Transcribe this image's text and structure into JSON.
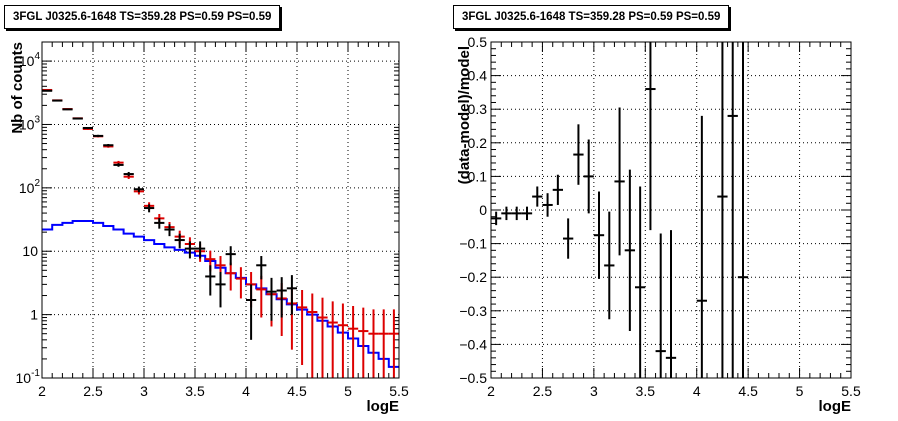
{
  "chart_data": [
    {
      "type": "line",
      "title": "3FGL J0325.6-1648 TS=359.28 PS=0.59 PS=0.59",
      "xlabel": "logE",
      "ylabel": "Nb of counts",
      "xlim": [
        2,
        5.5
      ],
      "ylim": [
        0.1,
        20000
      ],
      "yscale": "log",
      "grid": true,
      "x_ticks": [
        "2",
        "2.5",
        "3",
        "3.5",
        "4",
        "4.5",
        "5",
        "5.5"
      ],
      "y_ticks": [
        {
          "value": 0.1,
          "label": "10",
          "exp": "-1"
        },
        {
          "value": 1,
          "label": "1",
          "exp": ""
        },
        {
          "value": 10,
          "label": "10",
          "exp": ""
        },
        {
          "value": 100,
          "label": "10",
          "exp": "2"
        },
        {
          "value": 1000,
          "label": "10",
          "exp": "3"
        },
        {
          "value": 10000,
          "label": "10",
          "exp": "4"
        }
      ],
      "bin_edges": [
        2.0,
        2.1,
        2.2,
        2.3,
        2.4,
        2.5,
        2.6,
        2.7,
        2.8,
        2.9,
        3.0,
        3.1,
        3.2,
        3.3,
        3.4,
        3.5,
        3.6,
        3.7,
        3.8,
        3.9,
        4.0,
        4.1,
        4.2,
        4.3,
        4.4,
        4.5,
        4.6,
        4.7,
        4.8,
        4.9,
        5.0,
        5.1,
        5.2,
        5.3,
        5.4,
        5.5
      ],
      "series": [
        {
          "name": "",
          "kind": "step",
          "color": "#0000ff",
          "values": [
            22,
            26,
            28,
            30,
            30,
            28,
            25,
            22,
            19,
            17,
            15,
            13,
            11.5,
            10.5,
            9.5,
            8.5,
            7,
            5.5,
            4.5,
            3.8,
            3.0,
            2.6,
            2.1,
            1.75,
            1.45,
            1.2,
            1.0,
            0.8,
            0.65,
            0.52,
            0.42,
            0.32,
            0.25,
            0.2,
            0.15
          ]
        },
        {
          "name": "",
          "kind": "model-errorbars",
          "color": "#dd0000",
          "x": [
            2.05,
            2.15,
            2.25,
            2.35,
            2.45,
            2.55,
            2.65,
            2.75,
            2.85,
            2.95,
            3.05,
            3.15,
            3.25,
            3.35,
            3.45,
            3.55,
            3.65,
            3.75,
            3.85,
            3.95,
            4.05,
            4.15,
            4.25,
            4.35,
            4.45,
            4.55,
            4.65,
            4.75,
            4.85,
            4.95,
            5.05,
            5.15,
            5.25,
            5.35,
            5.45
          ],
          "y": [
            3500,
            2400,
            1750,
            1250,
            850,
            650,
            450,
            250,
            150,
            88,
            52,
            33,
            24,
            17,
            13,
            10,
            7.5,
            6,
            4.5,
            3.7,
            3.0,
            2.5,
            2.1,
            1.8,
            1.5,
            1.3,
            1.1,
            0.9,
            0.75,
            0.68,
            0.6,
            0.55,
            0.5,
            0.5,
            0.5
          ],
          "err": [
            60,
            50,
            42,
            35,
            29,
            25,
            21,
            16,
            12,
            9.4,
            7.2,
            5.7,
            4.9,
            4.1,
            3.6,
            3.2,
            2.7,
            2.4,
            2.1,
            1.9,
            1.7,
            1.6,
            1.45,
            1.34,
            1.22,
            1.14,
            1.05,
            0.95,
            0.87,
            0.82,
            0.77,
            0.74,
            0.71,
            0.71,
            0.71
          ]
        },
        {
          "name": "",
          "kind": "data-errorbars",
          "color": "#000000",
          "x": [
            2.05,
            2.15,
            2.25,
            2.35,
            2.45,
            2.55,
            2.65,
            2.75,
            2.85,
            2.95,
            3.05,
            3.15,
            3.25,
            3.35,
            3.45,
            3.55,
            3.65,
            3.75,
            3.85,
            4.05,
            4.15,
            4.25,
            4.35,
            4.45
          ],
          "y": [
            3400,
            2380,
            1730,
            1240,
            880,
            660,
            470,
            230,
            165,
            95,
            48,
            28,
            22,
            15,
            11,
            11,
            4,
            3,
            9,
            1.7,
            6,
            2.3,
            2.4,
            2.6
          ],
          "err": [
            58,
            49,
            42,
            35,
            30,
            26,
            22,
            15,
            13,
            9.7,
            6.9,
            5.3,
            4.7,
            3.9,
            3.3,
            3.3,
            2,
            1.7,
            3,
            1.3,
            2.4,
            1.5,
            1.5,
            1.6
          ]
        }
      ]
    },
    {
      "type": "scatter",
      "title": "3FGL J0325.6-1648 TS=359.28 PS=0.59 PS=0.59",
      "xlabel": "logE",
      "ylabel": "(data-model)/model",
      "xlim": [
        2,
        5.5
      ],
      "ylim": [
        -0.5,
        0.5
      ],
      "grid": true,
      "x_ticks": [
        "2",
        "2.5",
        "3",
        "3.5",
        "4",
        "4.5",
        "5",
        "5.5"
      ],
      "y_ticks": [
        "-0.5",
        "-0.4",
        "-0.3",
        "-0.2",
        "-0.1",
        "0",
        "0.1",
        "0.2",
        "0.3",
        "0.4",
        "0.5"
      ],
      "series": [
        {
          "name": "",
          "color": "#000000",
          "x": [
            2.05,
            2.15,
            2.25,
            2.35,
            2.45,
            2.55,
            2.65,
            2.75,
            2.85,
            2.95,
            3.05,
            3.15,
            3.25,
            3.35,
            3.45,
            3.55,
            3.65,
            3.75,
            4.05,
            4.25,
            4.35,
            4.45
          ],
          "y": [
            -0.025,
            -0.01,
            -0.01,
            -0.01,
            0.04,
            0.015,
            0.06,
            -0.085,
            0.165,
            0.1,
            -0.075,
            -0.165,
            0.085,
            -0.12,
            -0.23,
            0.36,
            -0.42,
            -0.44,
            -0.27,
            0.04,
            0.28,
            -0.2
          ],
          "err": [
            0.02,
            0.02,
            0.02,
            0.02,
            0.03,
            0.035,
            0.045,
            0.06,
            0.09,
            0.11,
            0.13,
            0.16,
            0.22,
            0.24,
            0.3,
            0.42,
            0.35,
            0.38,
            0.55,
            0.8,
            0.9,
            0.95
          ]
        }
      ]
    }
  ]
}
